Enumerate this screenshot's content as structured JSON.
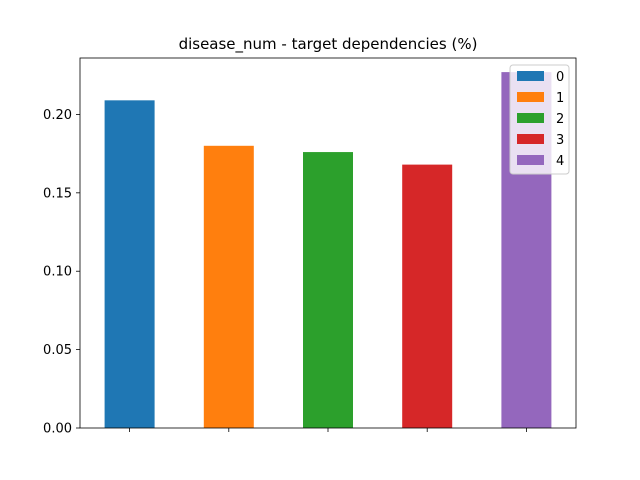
{
  "chart_data": {
    "type": "bar",
    "title": "disease_num - target dependencies (%)",
    "xlabel": "",
    "ylabel": "",
    "categories": [
      "0",
      "1",
      "2",
      "3",
      "4"
    ],
    "values": [
      0.209,
      0.18,
      0.176,
      0.168,
      0.227
    ],
    "colors": [
      "#1f77b4",
      "#ff7f0e",
      "#2ca02c",
      "#d62728",
      "#9467bd"
    ],
    "ylim": [
      0,
      0.236
    ],
    "yticks": [
      "0.00",
      "0.05",
      "0.10",
      "0.15",
      "0.20"
    ],
    "ytick_values": [
      0,
      0.05,
      0.1,
      0.15,
      0.2
    ],
    "legend": [
      "0",
      "1",
      "2",
      "3",
      "4"
    ],
    "legend_position": "top-right",
    "grid": false
  }
}
